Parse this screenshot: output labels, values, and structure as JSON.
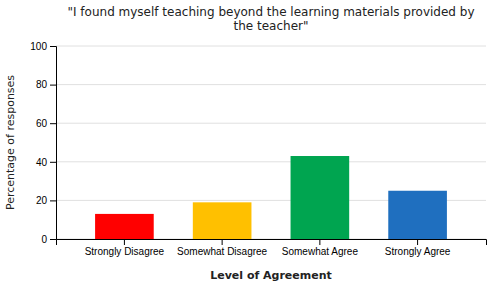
{
  "chart_data": {
    "type": "bar",
    "title": "\"I found myself teaching beyond the learning materials provided by\nthe teacher\"",
    "xlabel": "Level of Agreement",
    "ylabel": "Percentage of responses",
    "categories": [
      "Strongly Disagree",
      "Somewhat Disagree",
      "Somewhat Agree",
      "Strongly Agree"
    ],
    "values": [
      13,
      19,
      43,
      25
    ],
    "colors": [
      "#ff0000",
      "#ffc000",
      "#00a550",
      "#1f6fbf"
    ],
    "ylim": [
      0,
      100
    ],
    "yticks": [
      0,
      20,
      40,
      60,
      80,
      100
    ],
    "grid": true
  }
}
